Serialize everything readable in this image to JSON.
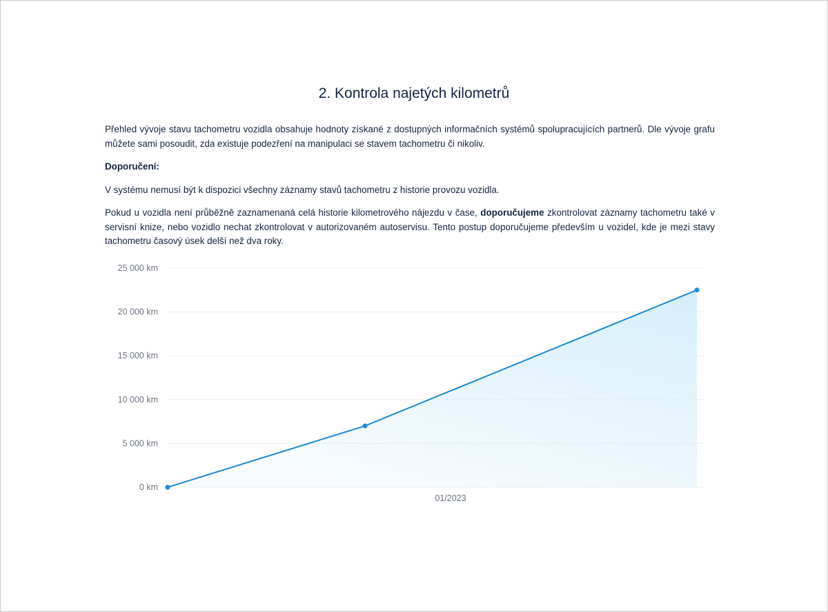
{
  "title": "2. Kontrola najetých kilometrů",
  "intro": "Přehled vývoje stavu tachometru vozidla obsahuje hodnoty získané z dostupných informačních systémů spolupracujících partnerů. Dle vývoje grafu můžete sami posoudit, zda existuje podezření na manipulaci se stavem tachometru či nikoliv.",
  "recommendation_heading": "Doporučení:",
  "note1": "V systému nemusí být k dispozici všechny záznamy stavů tachometru z historie provozu vozidla.",
  "note2": {
    "before": "Pokud u vozidla není průběžně zaznamenaná celá historie kilometrového nájezdu v čase, ",
    "bold": "doporučujeme",
    "after": " zkontrolovat záznamy tachometru také v servisní knize, nebo vozidlo nechat zkontrolovat v autorizovaném autoservisu. Tento postup doporučujeme především u vozidel, kde je mezi stavy tachometru časový úsek delší než dva roky."
  },
  "colors": {
    "line": "#1e88d2",
    "fill": "#d6eefa",
    "grid": "#ececec",
    "text": "#14233f"
  },
  "chart_data": {
    "type": "area",
    "y_ticks": [
      "0 km",
      "5 000 km",
      "10 000 km",
      "15 000 km",
      "20 000 km",
      "25 000 km"
    ],
    "ylim": [
      0,
      25000
    ],
    "x_tick_labels": [
      "01/2023"
    ],
    "values": [
      0,
      7000,
      22500
    ],
    "grid": true,
    "markers": true
  }
}
